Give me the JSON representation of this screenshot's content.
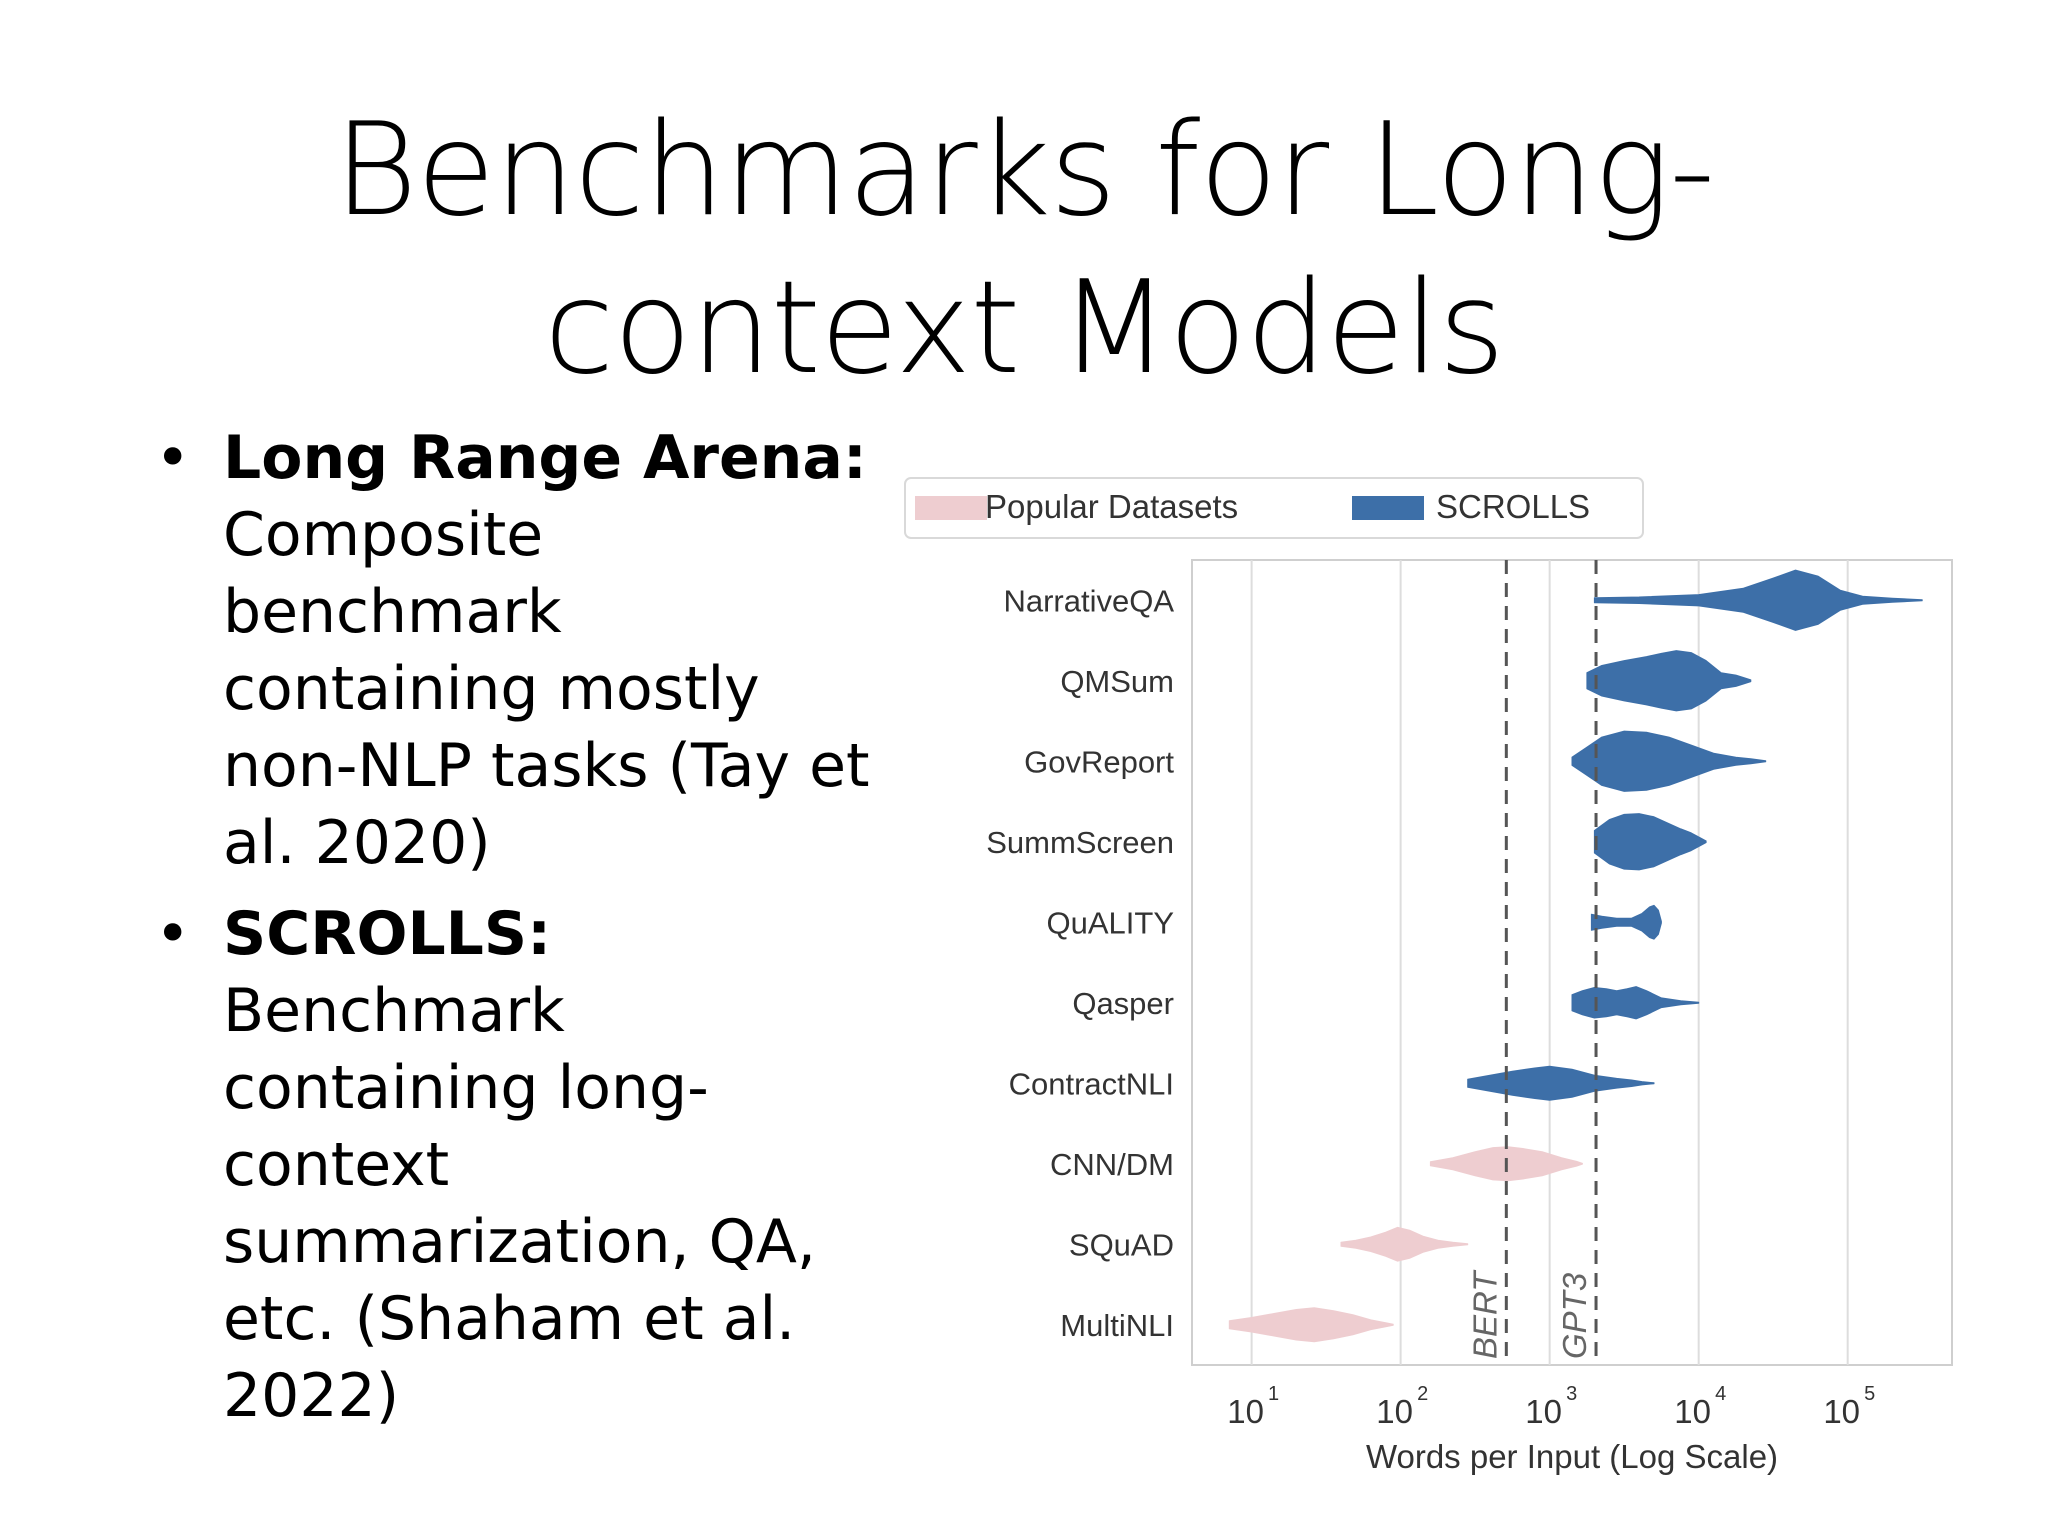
{
  "slide": {
    "title_line1": "Benchmarks for Long-",
    "title_line2": "context Models",
    "bullets": [
      {
        "heading": "Long Range Arena:",
        "lines": [
          "Composite",
          "benchmark",
          "containing mostly",
          "non-NLP tasks (Tay et",
          "al. 2020)"
        ]
      },
      {
        "heading": "SCROLLS:",
        "lines": [
          "Benchmark",
          "containing long-",
          "context",
          "summarization, QA,",
          "etc. (Shaham et al.",
          "2022)"
        ]
      }
    ]
  },
  "chart_data": {
    "type": "violin",
    "xlabel": "Words per Input (Log Scale)",
    "x_scale": "log10",
    "xlim_log10": [
      0.6,
      5.7
    ],
    "xticks": [
      {
        "base": "10",
        "exp": "1",
        "log10": 1
      },
      {
        "base": "10",
        "exp": "2",
        "log10": 2
      },
      {
        "base": "10",
        "exp": "3",
        "log10": 3
      },
      {
        "base": "10",
        "exp": "4",
        "log10": 4
      },
      {
        "base": "10",
        "exp": "5",
        "log10": 5
      }
    ],
    "legend": [
      {
        "label": "Popular Datasets",
        "color": "#eecdd0"
      },
      {
        "label": "SCROLLS",
        "color": "#3d6fa8"
      }
    ],
    "reference_lines": [
      {
        "label": "BERT",
        "value": 512
      },
      {
        "label": "GPT3",
        "value": 2048
      }
    ],
    "series": [
      {
        "name": "NarrativeQA",
        "group": "SCROLLS",
        "color": "#3d6fa8",
        "min_log10": 3.3,
        "max_log10": 5.5,
        "mode_log10": 4.7,
        "max_halfwidth": 0.75,
        "shape": [
          [
            3.3,
            0.06
          ],
          [
            3.6,
            0.08
          ],
          [
            4.0,
            0.14
          ],
          [
            4.3,
            0.3
          ],
          [
            4.5,
            0.55
          ],
          [
            4.65,
            0.75
          ],
          [
            4.8,
            0.6
          ],
          [
            4.95,
            0.25
          ],
          [
            5.1,
            0.1
          ],
          [
            5.3,
            0.05
          ],
          [
            5.5,
            0.01
          ]
        ]
      },
      {
        "name": "QMSum",
        "group": "SCROLLS",
        "color": "#3d6fa8",
        "min_log10": 3.25,
        "max_log10": 4.35,
        "mode_log10": 3.9,
        "max_halfwidth": 0.75,
        "shape": [
          [
            3.25,
            0.2
          ],
          [
            3.35,
            0.38
          ],
          [
            3.5,
            0.5
          ],
          [
            3.65,
            0.6
          ],
          [
            3.75,
            0.68
          ],
          [
            3.85,
            0.75
          ],
          [
            3.95,
            0.7
          ],
          [
            4.05,
            0.5
          ],
          [
            4.15,
            0.2
          ],
          [
            4.25,
            0.14
          ],
          [
            4.3,
            0.08
          ],
          [
            4.35,
            0.02
          ]
        ]
      },
      {
        "name": "GovReport",
        "group": "SCROLLS",
        "color": "#3d6fa8",
        "min_log10": 3.15,
        "max_log10": 4.45,
        "mode_log10": 3.55,
        "max_halfwidth": 0.75,
        "shape": [
          [
            3.15,
            0.1
          ],
          [
            3.25,
            0.35
          ],
          [
            3.35,
            0.6
          ],
          [
            3.5,
            0.75
          ],
          [
            3.65,
            0.72
          ],
          [
            3.8,
            0.6
          ],
          [
            3.95,
            0.4
          ],
          [
            4.1,
            0.2
          ],
          [
            4.25,
            0.1
          ],
          [
            4.35,
            0.06
          ],
          [
            4.45,
            0.01
          ]
        ]
      },
      {
        "name": "SummScreen",
        "group": "SCROLLS",
        "color": "#3d6fa8",
        "min_log10": 3.3,
        "max_log10": 4.05,
        "mode_log10": 3.6,
        "max_halfwidth": 0.7,
        "shape": [
          [
            3.3,
            0.28
          ],
          [
            3.4,
            0.55
          ],
          [
            3.5,
            0.68
          ],
          [
            3.6,
            0.7
          ],
          [
            3.7,
            0.62
          ],
          [
            3.8,
            0.45
          ],
          [
            3.88,
            0.32
          ],
          [
            3.95,
            0.22
          ],
          [
            4.0,
            0.12
          ],
          [
            4.05,
            0.02
          ]
        ]
      },
      {
        "name": "QuALITY",
        "group": "SCROLLS",
        "color": "#3d6fa8",
        "min_log10": 3.28,
        "max_log10": 3.75,
        "mode_log10": 3.7,
        "max_halfwidth": 0.42,
        "shape": [
          [
            3.28,
            0.2
          ],
          [
            3.35,
            0.15
          ],
          [
            3.45,
            0.1
          ],
          [
            3.55,
            0.1
          ],
          [
            3.62,
            0.22
          ],
          [
            3.67,
            0.38
          ],
          [
            3.7,
            0.42
          ],
          [
            3.73,
            0.3
          ],
          [
            3.75,
            0.02
          ]
        ]
      },
      {
        "name": "Qasper",
        "group": "SCROLLS",
        "color": "#3d6fa8",
        "min_log10": 3.15,
        "max_log10": 4.0,
        "mode_log10": 3.55,
        "max_halfwidth": 0.42,
        "shape": [
          [
            3.15,
            0.2
          ],
          [
            3.22,
            0.3
          ],
          [
            3.3,
            0.38
          ],
          [
            3.38,
            0.35
          ],
          [
            3.45,
            0.3
          ],
          [
            3.52,
            0.35
          ],
          [
            3.58,
            0.4
          ],
          [
            3.65,
            0.3
          ],
          [
            3.75,
            0.12
          ],
          [
            3.88,
            0.05
          ],
          [
            4.0,
            0.01
          ]
        ]
      },
      {
        "name": "ContractNLI",
        "group": "SCROLLS",
        "color": "#3d6fa8",
        "min_log10": 2.45,
        "max_log10": 3.7,
        "mode_log10": 3.0,
        "max_halfwidth": 0.42,
        "shape": [
          [
            2.45,
            0.1
          ],
          [
            2.6,
            0.2
          ],
          [
            2.75,
            0.3
          ],
          [
            2.9,
            0.38
          ],
          [
            3.0,
            0.42
          ],
          [
            3.15,
            0.35
          ],
          [
            3.3,
            0.2
          ],
          [
            3.45,
            0.12
          ],
          [
            3.55,
            0.08
          ],
          [
            3.62,
            0.04
          ],
          [
            3.7,
            0.01
          ]
        ]
      },
      {
        "name": "CNN/DM",
        "group": "Popular Datasets",
        "color": "#eecdd0",
        "min_log10": 2.2,
        "max_log10": 3.22,
        "mode_log10": 2.7,
        "max_halfwidth": 0.42,
        "shape": [
          [
            2.2,
            0.05
          ],
          [
            2.35,
            0.15
          ],
          [
            2.5,
            0.3
          ],
          [
            2.62,
            0.4
          ],
          [
            2.72,
            0.42
          ],
          [
            2.82,
            0.38
          ],
          [
            2.95,
            0.3
          ],
          [
            3.08,
            0.15
          ],
          [
            3.18,
            0.06
          ],
          [
            3.22,
            0.01
          ]
        ]
      },
      {
        "name": "SQuAD",
        "group": "Popular Datasets",
        "color": "#eecdd0",
        "min_log10": 1.6,
        "max_log10": 2.45,
        "mode_log10": 2.0,
        "max_halfwidth": 0.42,
        "shape": [
          [
            1.6,
            0.05
          ],
          [
            1.7,
            0.1
          ],
          [
            1.8,
            0.18
          ],
          [
            1.9,
            0.3
          ],
          [
            1.98,
            0.42
          ],
          [
            2.06,
            0.35
          ],
          [
            2.15,
            0.2
          ],
          [
            2.25,
            0.1
          ],
          [
            2.35,
            0.05
          ],
          [
            2.45,
            0.01
          ]
        ]
      },
      {
        "name": "MultiNLI",
        "group": "Popular Datasets",
        "color": "#eecdd0",
        "min_log10": 0.85,
        "max_log10": 1.95,
        "mode_log10": 1.4,
        "max_halfwidth": 0.42,
        "shape": [
          [
            0.85,
            0.1
          ],
          [
            1.0,
            0.18
          ],
          [
            1.15,
            0.28
          ],
          [
            1.3,
            0.38
          ],
          [
            1.42,
            0.42
          ],
          [
            1.55,
            0.35
          ],
          [
            1.68,
            0.25
          ],
          [
            1.8,
            0.12
          ],
          [
            1.9,
            0.05
          ],
          [
            1.95,
            0.01
          ]
        ]
      }
    ]
  }
}
